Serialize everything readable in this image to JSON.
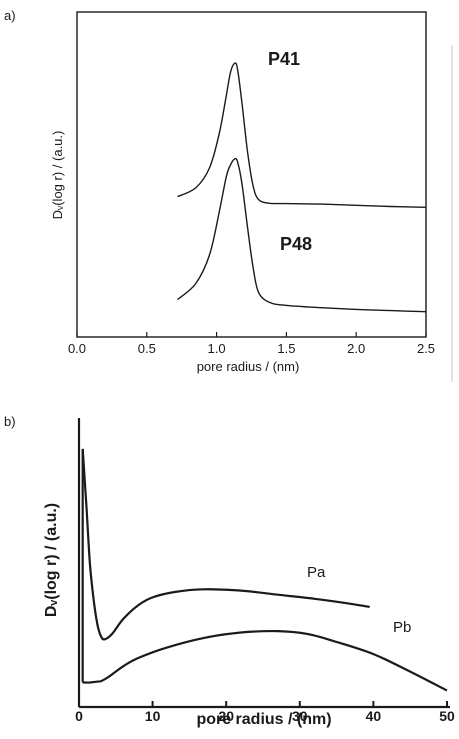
{
  "chart_data": [
    {
      "panel_label": "a)",
      "type": "line",
      "xlabel": "pore radius / (nm)",
      "ylabel": "Dᵥ(log r) / (a.u.)",
      "xlim": [
        0.0,
        2.5
      ],
      "ylim": [
        0,
        1
      ],
      "x_ticks": [
        "0.0",
        "0.5",
        "1.0",
        "1.5",
        "2.0",
        "2.5"
      ],
      "grid": false,
      "series": [
        {
          "name": "P41",
          "x": [
            0.72,
            0.85,
            0.95,
            1.02,
            1.07,
            1.1,
            1.13,
            1.15,
            1.18,
            1.22,
            1.26,
            1.3,
            1.38,
            1.5,
            1.75,
            2.0,
            2.25,
            2.5
          ],
          "y": [
            0.46,
            0.49,
            0.56,
            0.68,
            0.81,
            0.89,
            0.92,
            0.9,
            0.79,
            0.62,
            0.5,
            0.45,
            0.437,
            0.436,
            0.434,
            0.43,
            0.426,
            0.423
          ]
        },
        {
          "name": "P48",
          "x": [
            0.72,
            0.85,
            0.95,
            1.02,
            1.07,
            1.1,
            1.13,
            1.15,
            1.18,
            1.22,
            1.26,
            1.3,
            1.38,
            1.5,
            1.75,
            2.0,
            2.25,
            2.5
          ],
          "y": [
            0.105,
            0.16,
            0.26,
            0.41,
            0.53,
            0.57,
            0.59,
            0.58,
            0.51,
            0.36,
            0.22,
            0.13,
            0.095,
            0.085,
            0.077,
            0.071,
            0.067,
            0.063
          ]
        }
      ]
    },
    {
      "panel_label": "b)",
      "type": "line",
      "xlabel": "pore radius / (nm)",
      "ylabel": "Dᵥ(log r) / (a.u.)",
      "xlim": [
        0,
        50
      ],
      "ylim": [
        0,
        1
      ],
      "x_ticks": [
        "0",
        "10",
        "20",
        "30",
        "40",
        "50"
      ],
      "grid": false,
      "series": [
        {
          "name": "Pa",
          "x": [
            0.5,
            1.0,
            1.5,
            2.0,
            2.5,
            3.0,
            3.5,
            4.5,
            6,
            8,
            10,
            13,
            17,
            22,
            27,
            32,
            36,
            39.5
          ],
          "y": [
            0.93,
            0.72,
            0.5,
            0.37,
            0.28,
            0.235,
            0.225,
            0.245,
            0.3,
            0.35,
            0.38,
            0.4,
            0.41,
            0.405,
            0.39,
            0.375,
            0.36,
            0.345
          ]
        },
        {
          "name": "Pb",
          "x": [
            0.5,
            1.5,
            2.5,
            3.0,
            4.0,
            6,
            8,
            12,
            17,
            22,
            27,
            31,
            35,
            40,
            45,
            50
          ],
          "y": [
            0.065,
            0.065,
            0.068,
            0.07,
            0.085,
            0.125,
            0.155,
            0.195,
            0.23,
            0.25,
            0.255,
            0.245,
            0.215,
            0.17,
            0.105,
            0.035
          ]
        }
      ]
    }
  ]
}
